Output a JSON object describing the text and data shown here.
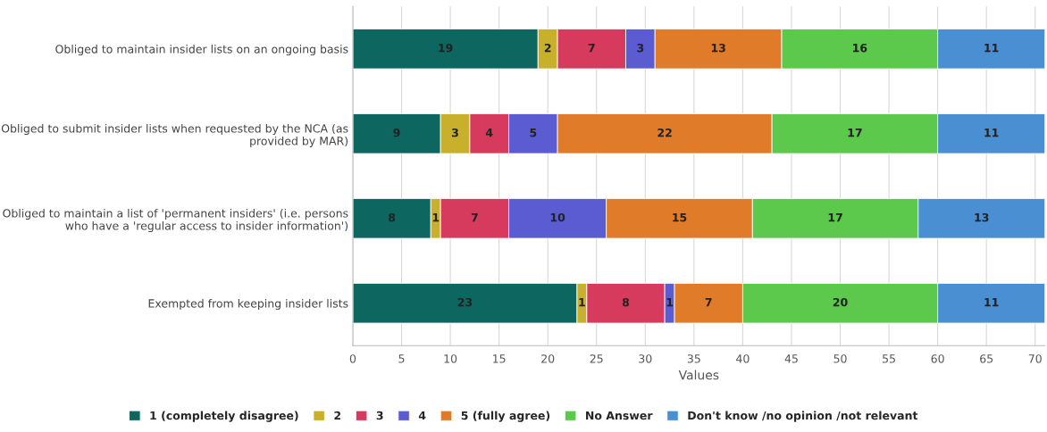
{
  "chart_data": {
    "type": "bar",
    "orientation": "horizontal",
    "stacked": true,
    "xlabel": "Values",
    "categories": [
      "Obliged to maintain insider lists on an ongoing basis",
      "Obliged to submit insider lists when requested by the NCA (as\nprovided by MAR)",
      "Obliged to maintain a list of 'permanent insiders' (i.e. persons\nwho have a 'regular access to insider information')",
      "Exempted from keeping insider lists"
    ],
    "series": [
      {
        "name": "1 (completely disagree)",
        "color": "#0e6660",
        "values": [
          19,
          9,
          8,
          23
        ]
      },
      {
        "name": "2",
        "color": "#c9b02c",
        "values": [
          2,
          3,
          1,
          1
        ]
      },
      {
        "name": "3",
        "color": "#d63a5c",
        "values": [
          7,
          4,
          7,
          8
        ]
      },
      {
        "name": "4",
        "color": "#5b5bd2",
        "values": [
          3,
          5,
          10,
          1
        ]
      },
      {
        "name": "5 (fully agree)",
        "color": "#e07b2a",
        "values": [
          13,
          22,
          15,
          7
        ]
      },
      {
        "name": "No Answer",
        "color": "#5cc84c",
        "values": [
          16,
          17,
          17,
          20
        ]
      },
      {
        "name": "Don't know /no opinion /not relevant",
        "color": "#4a8fd2",
        "values": [
          11,
          11,
          13,
          11
        ]
      }
    ],
    "xlim": [
      0,
      71
    ],
    "xticks": [
      0,
      5,
      10,
      15,
      20,
      25,
      30,
      35,
      40,
      45,
      50,
      55,
      60,
      65,
      70
    ],
    "grid": "x",
    "legend": "bottom",
    "data_labels": true
  }
}
